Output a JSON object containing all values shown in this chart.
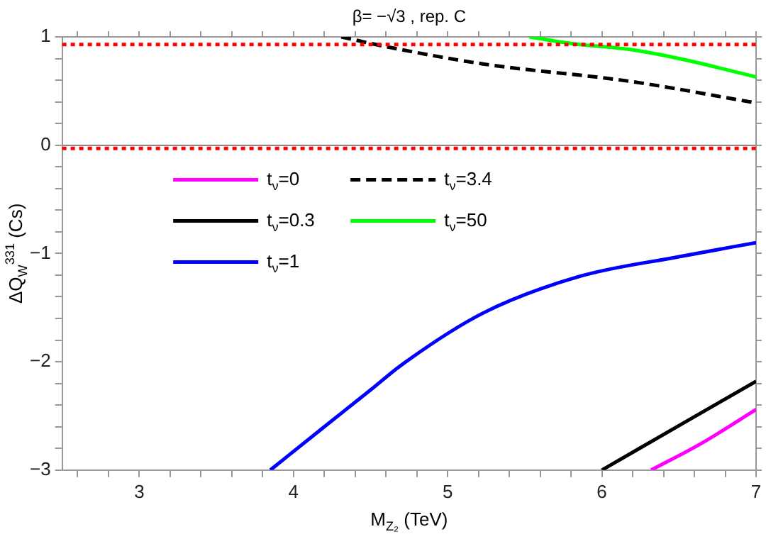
{
  "chart_data": {
    "type": "line",
    "title": "β= −√3 , rep. C",
    "xlabel": "M$_{Z₂}$ (TeV)",
    "ylabel": "ΔQ$_{W}$$^{331}$ (Cs)",
    "xlim": [
      2.5,
      7
    ],
    "ylim": [
      -3,
      1
    ],
    "xticks": [
      {
        "value": 2.6,
        "label": null
      },
      {
        "value": 2.8,
        "label": null
      },
      3,
      {
        "value": 3.2,
        "label": null
      },
      {
        "value": 3.4,
        "label": null
      },
      {
        "value": 3.6,
        "label": null
      },
      {
        "value": 3.8,
        "label": null
      },
      4,
      {
        "value": 4.2,
        "label": null
      },
      {
        "value": 4.4,
        "label": null
      },
      {
        "value": 4.6,
        "label": null
      },
      {
        "value": 4.8,
        "label": null
      },
      5,
      {
        "value": 5.2,
        "label": null
      },
      {
        "value": 5.4,
        "label": null
      },
      {
        "value": 5.6,
        "label": null
      },
      {
        "value": 5.8,
        "label": null
      },
      6,
      {
        "value": 6.2,
        "label": null
      },
      {
        "value": 6.4,
        "label": null
      },
      {
        "value": 6.6,
        "label": null
      },
      {
        "value": 6.8,
        "label": null
      },
      7
    ],
    "yticks": [
      -3,
      {
        "value": -2.8,
        "label": null
      },
      {
        "value": -2.6,
        "label": null
      },
      {
        "value": -2.4,
        "label": null
      },
      {
        "value": -2.2,
        "label": null
      },
      -2,
      {
        "value": -1.8,
        "label": null
      },
      {
        "value": -1.6,
        "label": null
      },
      {
        "value": -1.4,
        "label": null
      },
      {
        "value": -1.2,
        "label": null
      },
      -1,
      {
        "value": -0.8,
        "label": null
      },
      {
        "value": -0.6,
        "label": null
      },
      {
        "value": -0.4,
        "label": null
      },
      {
        "value": -0.2,
        "label": null
      },
      0,
      {
        "value": 0.2,
        "label": null
      },
      {
        "value": 0.4,
        "label": null
      },
      {
        "value": 0.6,
        "label": null
      },
      {
        "value": 0.8,
        "label": null
      },
      1
    ],
    "legend": "left",
    "marker": "none",
    "ref_lines": [
      {
        "axis": "y",
        "value": 0.93,
        "color": "#ff0000",
        "line_style": "dotted"
      },
      {
        "axis": "y",
        "value": -0.03,
        "color": "#ff0000",
        "line_style": "dotted"
      }
    ],
    "series": [
      {
        "name": "t$_{ν}$=0",
        "color": "#ff00ff",
        "x": [
          6.32,
          6.65,
          7
        ],
        "values": [
          -3,
          -2.75,
          -2.44
        ]
      },
      {
        "name": "t$_{ν}$=0.3",
        "color": "#000000",
        "x": [
          6,
          6.5,
          7
        ],
        "values": [
          -3,
          -2.59,
          -2.18
        ]
      },
      {
        "name": "t$_{ν}$=1",
        "color": "#0000ff",
        "x": [
          3.85,
          4.2,
          4.5,
          4.7,
          5.23,
          5.86,
          6.5,
          7
        ],
        "values": [
          -3,
          -2.6,
          -2.26,
          -2.03,
          -1.55,
          -1.21,
          -1.03,
          -0.9
        ]
      },
      {
        "name": "t$_{ν}$=3.4",
        "color": "#000000",
        "line_style": "dashed",
        "x": [
          4.31,
          4.6,
          5.23,
          6.18,
          7
        ],
        "values": [
          1,
          0.91,
          0.75,
          0.59,
          0.39
        ]
      },
      {
        "name": "t$_{ν}$=50",
        "color": "#00ff00",
        "x": [
          5.53,
          5.8,
          6.2,
          6.5,
          7
        ],
        "values": [
          1,
          0.94,
          0.88,
          0.8,
          0.63
        ]
      }
    ]
  }
}
